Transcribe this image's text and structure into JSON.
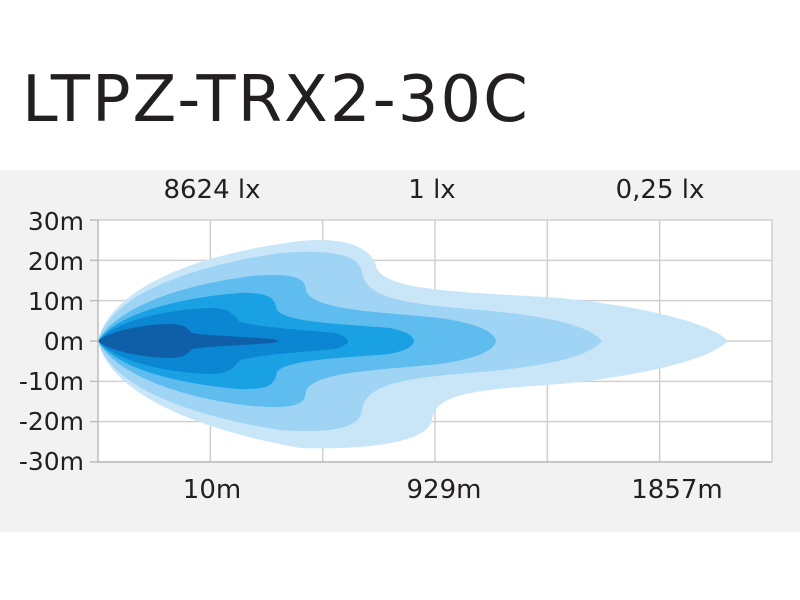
{
  "title": "LTPZ-TRX2-30C",
  "chart_data": {
    "type": "area",
    "top_labels": [
      "8624 lx",
      "1 lx",
      "0,25 lx"
    ],
    "y_ticks": [
      "30m",
      "20m",
      "10m",
      "0m",
      "-10m",
      "-20m",
      "-30m"
    ],
    "y_values": [
      30,
      20,
      10,
      0,
      -10,
      -20,
      -30
    ],
    "ylim": [
      -30,
      30
    ],
    "x_tick_labels": [
      "10m",
      "929m",
      "1857m"
    ],
    "grid": true,
    "zone_colors": [
      "#c9e6f8",
      "#9fd4f4",
      "#5fbcee",
      "#1aa1e3",
      "#0a86d2",
      "#0f5fa8"
    ],
    "grid_color": "#d0d0d0",
    "background_band": "#f2f2f2"
  }
}
